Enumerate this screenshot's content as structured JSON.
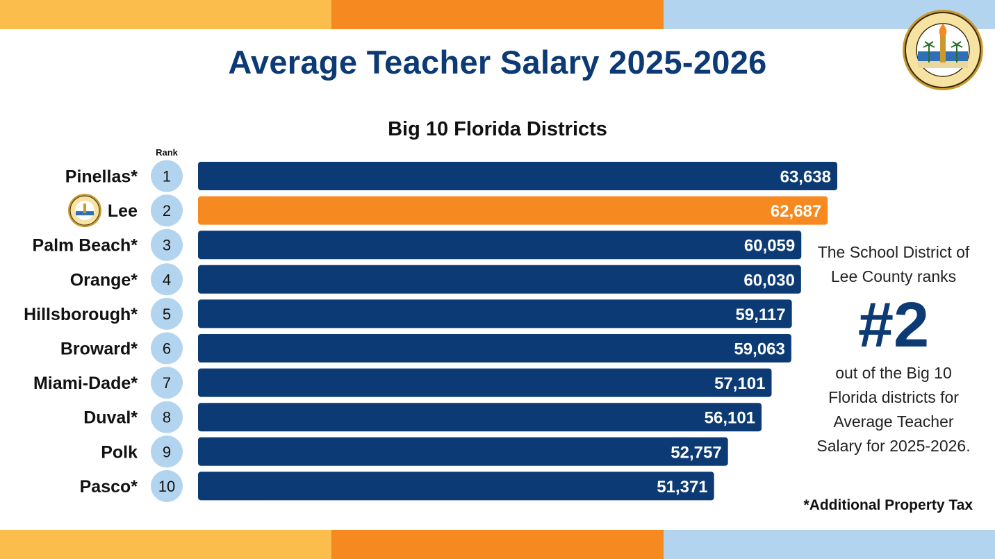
{
  "colors": {
    "navy": "#0b3a74",
    "orange": "#f6891f",
    "gold": "#fbbd4b",
    "light_blue": "#b3d4ef",
    "rank_badge": "#b3d4ef"
  },
  "header": {
    "title": "Average Teacher Salary 2025-2026",
    "subtitle": "Big 10 Florida Districts",
    "logo": "school-district-of-lee-county-seal",
    "logo_text": "THE SCHOOL DISTRICT OF LEE COUNTY"
  },
  "rank_label": "Rank",
  "chart_data": {
    "type": "bar",
    "orientation": "horizontal",
    "title": "Big 10 Florida Districts",
    "categories": [
      "Pinellas*",
      "Lee",
      "Palm Beach*",
      "Orange*",
      "Hillsborough*",
      "Broward*",
      "Miami-Dade*",
      "Duval*",
      "Polk",
      "Pasco*"
    ],
    "ranks": [
      "1",
      "2",
      "3",
      "4",
      "5",
      "6",
      "7",
      "8",
      "9",
      "10"
    ],
    "values": [
      63638,
      62687,
      60059,
      60030,
      59117,
      59063,
      57101,
      56101,
      52757,
      51371
    ],
    "value_labels": [
      "63,638",
      "62,687",
      "60,059",
      "60,030",
      "59,117",
      "59,063",
      "57,101",
      "56,101",
      "52,757",
      "51,371"
    ],
    "highlight_category": "Lee",
    "grid": false,
    "legend": false
  },
  "side_note": {
    "line1": "The School District of Lee County ranks",
    "rank_big": "#2",
    "line2": "out of the Big 10 Florida districts for Average Teacher Salary for 2025-2026."
  },
  "footnote": "*Additional Property Tax"
}
